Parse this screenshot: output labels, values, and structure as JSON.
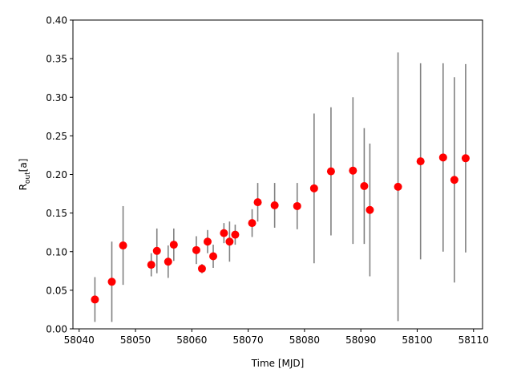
{
  "chart_data": {
    "type": "errorbar",
    "xlabel": "Time [MJD]",
    "ylabel": {
      "main": "R",
      "sub": "out",
      "suffix": "[a]"
    },
    "x": [
      58042.8,
      58045.8,
      58047.8,
      58052.8,
      58053.8,
      58055.8,
      58056.8,
      58060.8,
      58061.8,
      58062.8,
      58063.8,
      58065.7,
      58066.7,
      58067.7,
      58070.7,
      58071.7,
      58074.7,
      58078.7,
      58081.7,
      58084.7,
      58088.6,
      58090.6,
      58091.6,
      58096.6,
      58100.6,
      58104.6,
      58106.6,
      58108.6
    ],
    "values": [
      0.038,
      0.061,
      0.108,
      0.083,
      0.101,
      0.087,
      0.109,
      0.102,
      0.078,
      0.113,
      0.094,
      0.124,
      0.113,
      0.122,
      0.137,
      0.164,
      0.16,
      0.159,
      0.182,
      0.204,
      0.205,
      0.185,
      0.154,
      0.184,
      0.217,
      0.222,
      0.193,
      0.221
    ],
    "errors": [
      0.029,
      0.052,
      0.051,
      0.015,
      0.029,
      0.021,
      0.021,
      0.018,
      0.006,
      0.015,
      0.015,
      0.013,
      0.026,
      0.013,
      0.018,
      0.025,
      0.029,
      0.03,
      0.097,
      0.083,
      0.095,
      0.075,
      0.086,
      0.174,
      0.127,
      0.122,
      0.133,
      0.122
    ],
    "marker_color": "#ff0000",
    "errorbar_color": "#808080",
    "xlim": [
      58038.9,
      58111.6
    ],
    "ylim": [
      0,
      0.4
    ],
    "xticks": [
      58040,
      58050,
      58060,
      58070,
      58080,
      58090,
      58100,
      58110
    ],
    "yticks": [
      {
        "value": 0,
        "label": "0.00"
      },
      {
        "value": 0.05,
        "label": "0.05"
      },
      {
        "value": 0.1,
        "label": "0.10"
      },
      {
        "value": 0.15,
        "label": "0.15"
      },
      {
        "value": 0.2,
        "label": "0.20"
      },
      {
        "value": 0.25,
        "label": "0.25"
      },
      {
        "value": 0.3,
        "label": "0.30"
      },
      {
        "value": 0.35,
        "label": "0.35"
      },
      {
        "value": 0.4,
        "label": "0.40"
      }
    ]
  }
}
